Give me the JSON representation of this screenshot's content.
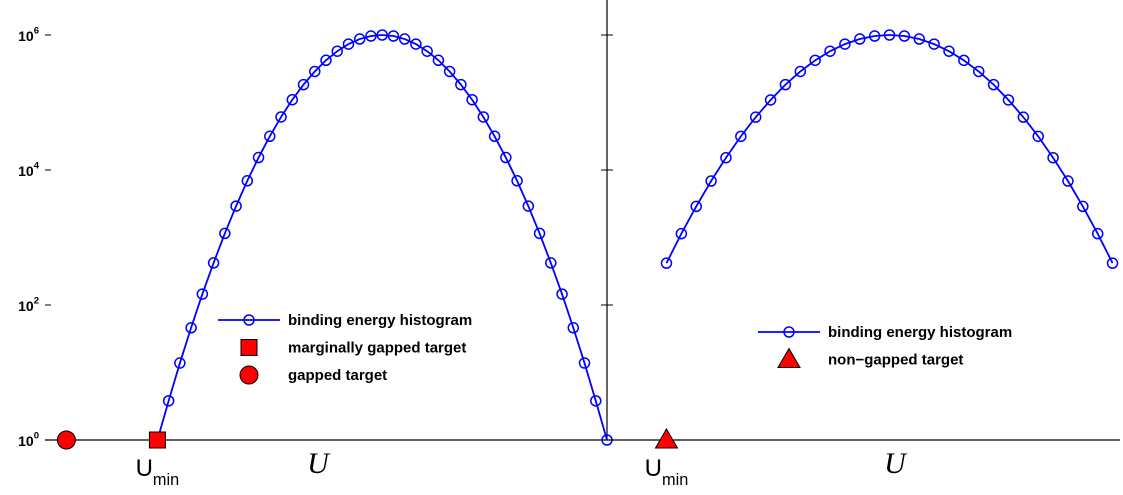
{
  "chart_data": [
    {
      "type": "line",
      "log_scale": true,
      "xlabel": "U",
      "annotation": "U_min",
      "xlim": [
        -10,
        40
      ],
      "ylim": [
        1,
        3300000
      ],
      "yticks": [
        {
          "value": 1,
          "label": "10^0"
        },
        {
          "value": 100,
          "label": "10^2"
        },
        {
          "value": 10000,
          "label": "10^4"
        },
        {
          "value": 1000000,
          "label": "10^6"
        }
      ],
      "tick_labels": true,
      "series": [
        {
          "name": "binding energy histogram",
          "color": "#0000ff",
          "marker": "circle",
          "line": true,
          "x": [
            0,
            1,
            2,
            3,
            4,
            5,
            6,
            7,
            8,
            9,
            10,
            11,
            12,
            13,
            14,
            15,
            16,
            17,
            18,
            19,
            20,
            21,
            22,
            23,
            24,
            25,
            26,
            27,
            28,
            29,
            30,
            31,
            32,
            33,
            34,
            35,
            36,
            37,
            38,
            39,
            40
          ],
          "values": [
            1,
            3.8,
            13.8,
            46,
            145,
            420,
            1150,
            2920,
            6920,
            15300,
            31600,
            61000,
            110000,
            184000,
            288000,
            422000,
            575000,
            733000,
            871000,
            966000,
            1000000,
            966000,
            871000,
            733000,
            575000,
            422000,
            288000,
            184000,
            110000,
            61000,
            31600,
            15300,
            6920,
            2920,
            1150,
            420,
            145,
            46,
            13.8,
            3.8,
            1
          ]
        },
        {
          "name": "marginally gapped target",
          "color": "#ff0000",
          "marker": "square",
          "line": false,
          "x": [
            0
          ],
          "values": [
            1
          ]
        },
        {
          "name": "gapped target",
          "color": "#ff0000",
          "marker": "disc",
          "line": false,
          "x": [
            -8.1
          ],
          "values": [
            1
          ]
        }
      ]
    },
    {
      "type": "line",
      "log_scale": true,
      "xlabel": "U",
      "annotation": "U_min",
      "xlim": [
        -4,
        30.5
      ],
      "ylim": [
        1,
        3300000
      ],
      "yticks": [
        1,
        100,
        10000,
        1000000
      ],
      "tick_labels": false,
      "series": [
        {
          "name": "binding energy histogram",
          "color": "#0000ff",
          "marker": "circle",
          "line": true,
          "x": [
            0,
            1,
            2,
            3,
            4,
            5,
            6,
            7,
            8,
            9,
            10,
            11,
            12,
            13,
            14,
            15,
            16,
            17,
            18,
            19,
            20,
            21,
            22,
            23,
            24,
            25,
            26,
            27,
            28,
            29,
            30
          ],
          "values": [
            417,
            1140,
            2890,
            6870,
            15200,
            31500,
            60700,
            109000,
            184000,
            288000,
            421000,
            575000,
            733000,
            871000,
            966000,
            1000000,
            966000,
            871000,
            733000,
            575000,
            421000,
            288000,
            184000,
            109000,
            60700,
            31500,
            15200,
            6870,
            2890,
            1140,
            417
          ]
        },
        {
          "name": "non−gapped target",
          "color": "#ff0000",
          "marker": "triangle",
          "line": false,
          "x": [
            0
          ],
          "values": [
            1
          ]
        }
      ]
    }
  ]
}
